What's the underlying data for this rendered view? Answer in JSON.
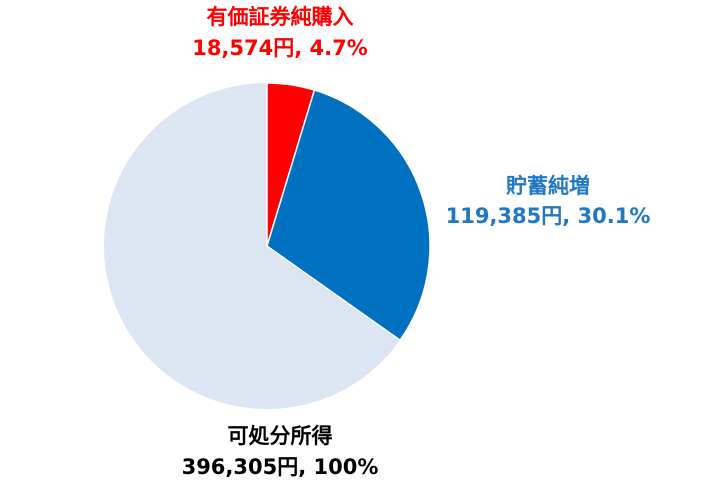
{
  "chart_data": {
    "type": "pie",
    "categories": [
      "有価証券純購入",
      "貯蓄純増"
    ],
    "values": [
      4.7,
      30.1
    ],
    "value_labels": [
      "18,574円, 4.7%",
      "119,385円, 30.1%"
    ],
    "colors": [
      "#ff0000",
      "#0070c0"
    ],
    "label_colors": [
      "#ff0000",
      "#1f78c1"
    ],
    "total": {
      "name": "可処分所得",
      "value": 100,
      "value_label": "396,305円, 100%",
      "color": "#dce6f2",
      "label_color": "#000000"
    }
  }
}
